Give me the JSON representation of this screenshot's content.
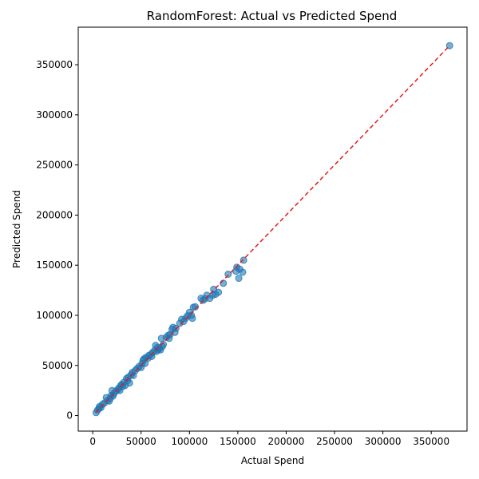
{
  "chart_data": {
    "type": "scatter",
    "title": "RandomForest: Actual vs Predicted Spend",
    "xlabel": "Actual Spend",
    "ylabel": "Predicted Spend",
    "xlim": [
      -15000,
      387000
    ],
    "ylim": [
      -15500,
      387500
    ],
    "x_ticks": [
      0,
      50000,
      100000,
      150000,
      200000,
      250000,
      300000,
      350000
    ],
    "y_ticks": [
      0,
      50000,
      100000,
      150000,
      200000,
      250000,
      300000,
      350000
    ],
    "x_tick_labels": [
      "0",
      "50000",
      "100000",
      "150000",
      "200000",
      "250000",
      "300000",
      "350000"
    ],
    "y_tick_labels": [
      "0",
      "50000",
      "100000",
      "150000",
      "200000",
      "250000",
      "300000",
      "350000"
    ],
    "grid": false,
    "reference_line": {
      "from": [
        3000,
        3000
      ],
      "to": [
        369000,
        369000
      ],
      "style": "dashed",
      "color": "#e41a1c"
    },
    "point_color": "#1f77b4",
    "points": [
      [
        3500,
        3000
      ],
      [
        5000,
        5500
      ],
      [
        6500,
        7000
      ],
      [
        7000,
        9000
      ],
      [
        8500,
        8000
      ],
      [
        10000,
        11000
      ],
      [
        12000,
        12500
      ],
      [
        14000,
        18000
      ],
      [
        15000,
        15000
      ],
      [
        17000,
        14500
      ],
      [
        18000,
        17000
      ],
      [
        19000,
        20000
      ],
      [
        20000,
        25000
      ],
      [
        21000,
        19500
      ],
      [
        22000,
        22000
      ],
      [
        24000,
        24500
      ],
      [
        26000,
        26000
      ],
      [
        27000,
        27500
      ],
      [
        28000,
        25000
      ],
      [
        29000,
        30000
      ],
      [
        30000,
        31000
      ],
      [
        31000,
        29000
      ],
      [
        32000,
        33000
      ],
      [
        33500,
        30000
      ],
      [
        35000,
        37000
      ],
      [
        36000,
        35000
      ],
      [
        37000,
        38500
      ],
      [
        38000,
        32500
      ],
      [
        40000,
        41000
      ],
      [
        41000,
        43000
      ],
      [
        42000,
        40000
      ],
      [
        44000,
        45000
      ],
      [
        46000,
        47000
      ],
      [
        48000,
        49000
      ],
      [
        50000,
        48000
      ],
      [
        51000,
        52000
      ],
      [
        52000,
        55000
      ],
      [
        53000,
        56500
      ],
      [
        54000,
        52000
      ],
      [
        55000,
        58000
      ],
      [
        57000,
        57000
      ],
      [
        58000,
        60000
      ],
      [
        60000,
        61000
      ],
      [
        61000,
        59000
      ],
      [
        62000,
        63000
      ],
      [
        64000,
        65000
      ],
      [
        65000,
        70000
      ],
      [
        66000,
        64000
      ],
      [
        67000,
        68000
      ],
      [
        68000,
        66000
      ],
      [
        69000,
        67000
      ],
      [
        70000,
        65500
      ],
      [
        71000,
        77000
      ],
      [
        72000,
        69000
      ],
      [
        73000,
        71000
      ],
      [
        76000,
        78000
      ],
      [
        78000,
        80000
      ],
      [
        79000,
        77000
      ],
      [
        80000,
        81000
      ],
      [
        82000,
        86000
      ],
      [
        83000,
        88000
      ],
      [
        85000,
        83000
      ],
      [
        86000,
        87000
      ],
      [
        90000,
        92000
      ],
      [
        92000,
        96000
      ],
      [
        94000,
        94000
      ],
      [
        96000,
        97000
      ],
      [
        98000,
        99500
      ],
      [
        100000,
        103000
      ],
      [
        102000,
        100000
      ],
      [
        103000,
        97000
      ],
      [
        104000,
        108000
      ],
      [
        106000,
        108500
      ],
      [
        112000,
        117000
      ],
      [
        114000,
        115000
      ],
      [
        116000,
        116500
      ],
      [
        118000,
        120000
      ],
      [
        121000,
        117000
      ],
      [
        124000,
        120000
      ],
      [
        125000,
        126000
      ],
      [
        127000,
        121000
      ],
      [
        130000,
        123000
      ],
      [
        135000,
        132000
      ],
      [
        140000,
        141000
      ],
      [
        148000,
        144000
      ],
      [
        149000,
        148000
      ],
      [
        151000,
        137000
      ],
      [
        152000,
        146000
      ],
      [
        155000,
        143000
      ],
      [
        156000,
        155000
      ],
      [
        369000,
        369000
      ]
    ]
  }
}
